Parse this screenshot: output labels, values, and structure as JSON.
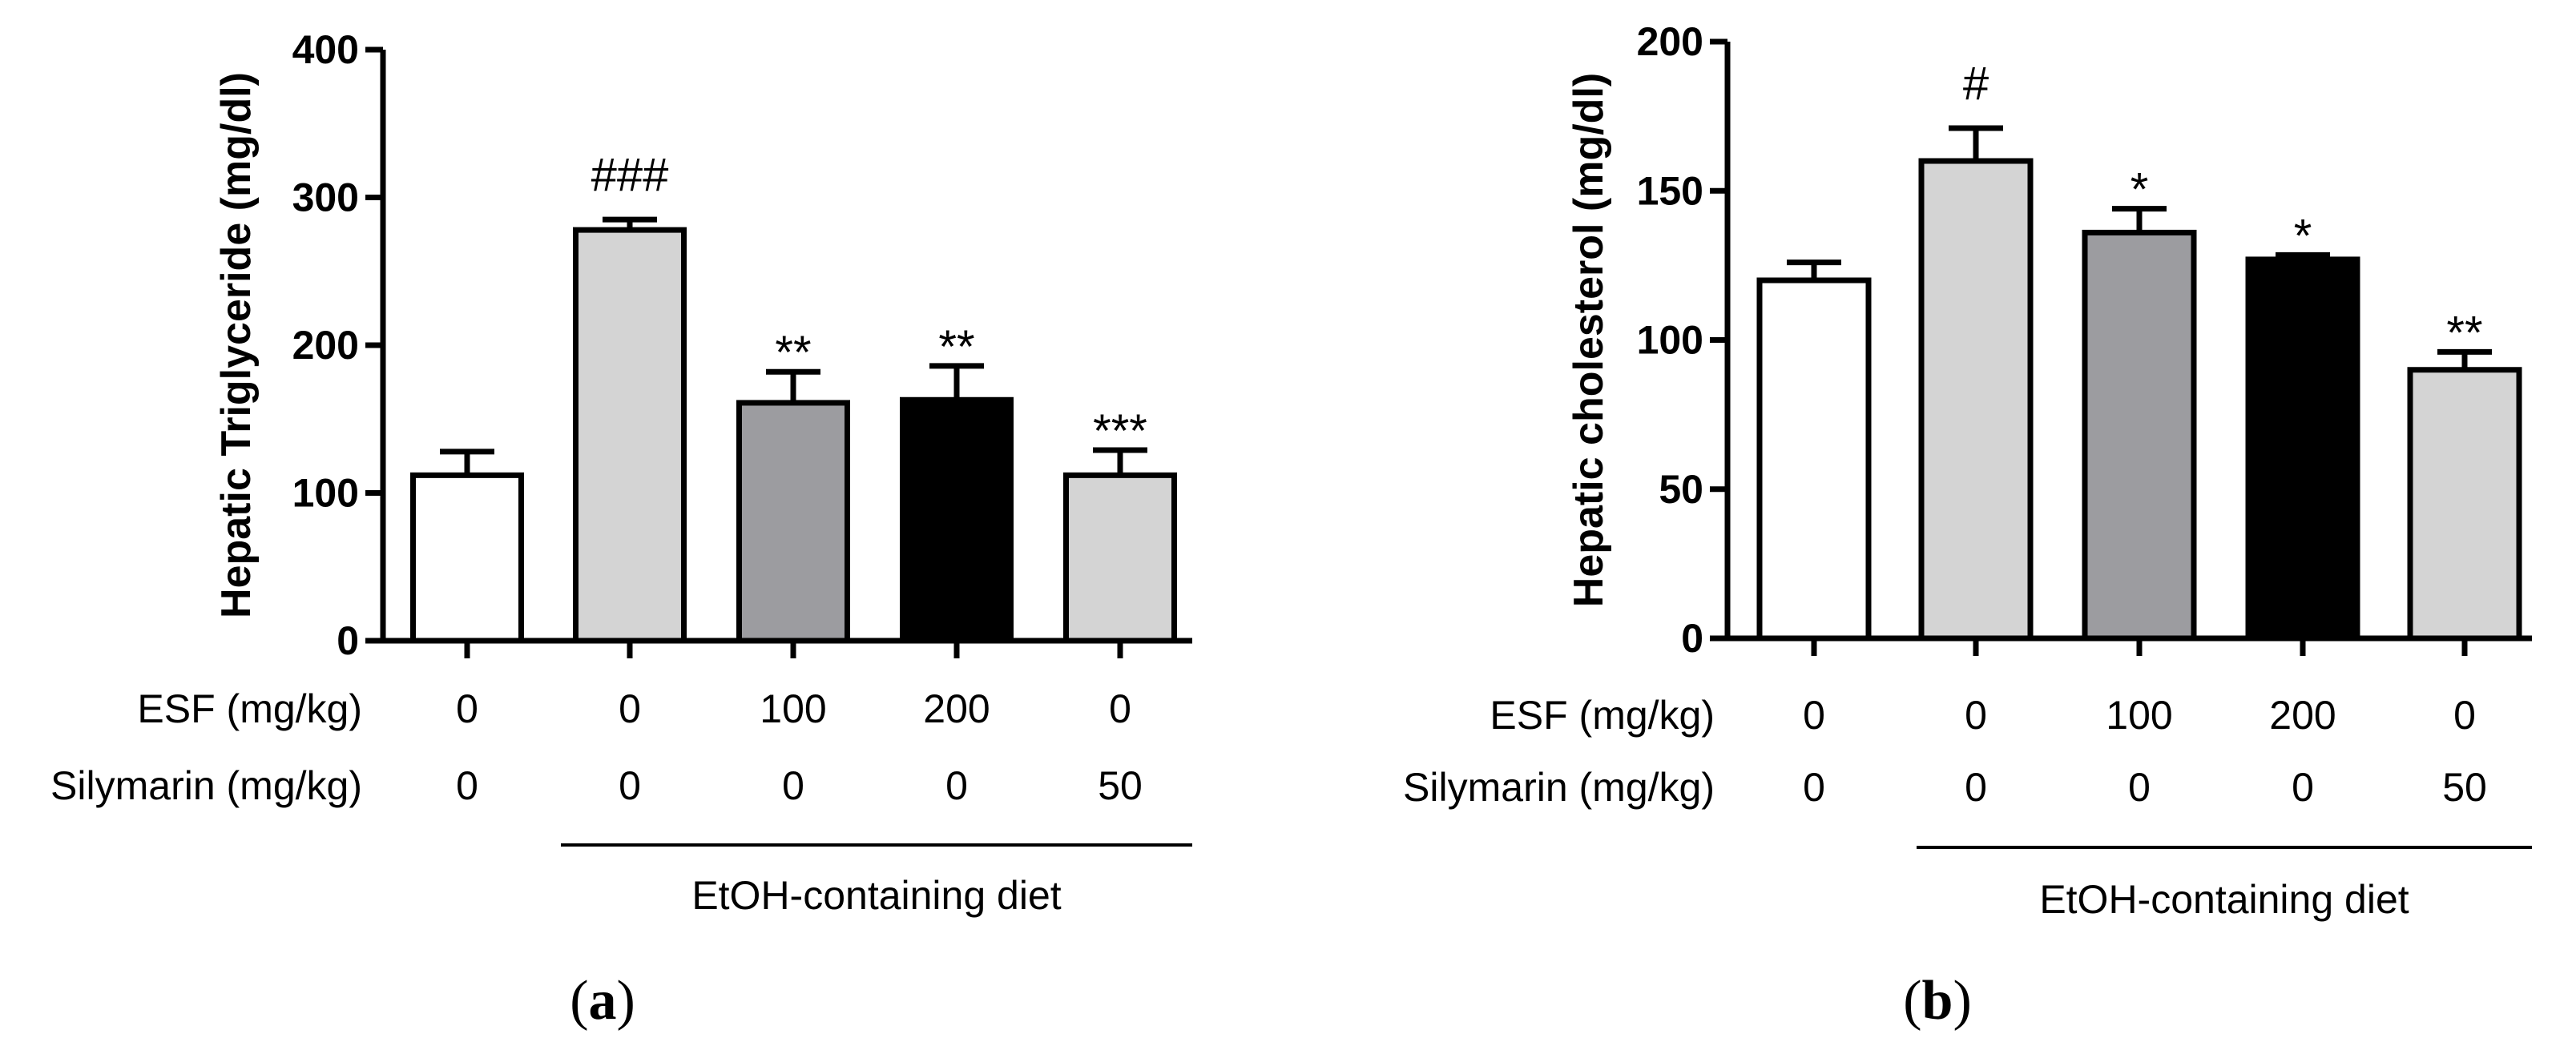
{
  "chart_data": [
    {
      "type": "bar",
      "panel_label": "a",
      "ylabel": "Hepatic Triglyceride (mg/dl)",
      "ylim": [
        0,
        400
      ],
      "yticks": [
        "0",
        "100",
        "200",
        "300",
        "400"
      ],
      "ytick_values": [
        0,
        100,
        200,
        300,
        400
      ],
      "values": [
        112,
        278,
        161,
        163,
        112
      ],
      "errors": [
        16,
        7,
        21,
        23,
        17
      ],
      "bar_colors": [
        "#ffffff",
        "#d4d4d4",
        "#9c9ca0",
        "#000000",
        "#d4d4d4"
      ],
      "significance": [
        "",
        "###",
        "**",
        "**",
        "***"
      ],
      "table": {
        "row1_label": "ESF (mg/kg)",
        "row1_values": [
          "0",
          "0",
          "100",
          "200",
          "0"
        ],
        "row2_label": "Silymarin (mg/kg)",
        "row2_values": [
          "0",
          "0",
          "0",
          "0",
          "50"
        ]
      },
      "group_label": "EtOH-containing diet"
    },
    {
      "type": "bar",
      "panel_label": "b",
      "ylabel": "Hepatic cholesterol (mg/dl)",
      "ylim": [
        0,
        200
      ],
      "yticks": [
        "0",
        "50",
        "100",
        "150",
        "200"
      ],
      "ytick_values": [
        0,
        50,
        100,
        150,
        200
      ],
      "values": [
        120,
        160,
        136,
        127,
        90
      ],
      "errors": [
        6,
        11,
        8,
        1.5,
        6
      ],
      "bar_colors": [
        "#ffffff",
        "#d4d4d4",
        "#9c9ca0",
        "#000000",
        "#d4d4d4"
      ],
      "significance": [
        "",
        "#",
        "*",
        "*",
        "**"
      ],
      "table": {
        "row1_label": "ESF (mg/kg)",
        "row1_values": [
          "0",
          "0",
          "100",
          "200",
          "0"
        ],
        "row2_label": "Silymarin (mg/kg)",
        "row2_values": [
          "0",
          "0",
          "0",
          "0",
          "50"
        ]
      },
      "group_label": "EtOH-containing diet"
    }
  ]
}
